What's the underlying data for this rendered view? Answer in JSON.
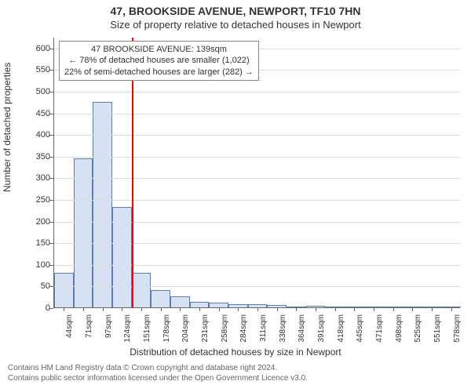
{
  "chart": {
    "type": "histogram",
    "title_line1": "47, BROOKSIDE AVENUE, NEWPORT, TF10 7HN",
    "title_line2": "Size of property relative to detached houses in Newport",
    "ylabel": "Number of detached properties",
    "xlabel": "Distribution of detached houses by size in Newport",
    "title_fontsize": 14,
    "subtitle_fontsize": 13,
    "label_fontsize": 12,
    "tick_fontsize": 11,
    "background_color": "#ffffff",
    "grid_color": "#dcdcdc",
    "axis_color": "#666666",
    "ylim_max": 625,
    "yticks": [
      0,
      50,
      100,
      150,
      200,
      250,
      300,
      350,
      400,
      450,
      500,
      550,
      600
    ],
    "xticks": [
      "44sqm",
      "71sqm",
      "97sqm",
      "124sqm",
      "151sqm",
      "178sqm",
      "204sqm",
      "231sqm",
      "258sqm",
      "284sqm",
      "311sqm",
      "338sqm",
      "364sqm",
      "391sqm",
      "418sqm",
      "445sqm",
      "471sqm",
      "498sqm",
      "525sqm",
      "551sqm",
      "578sqm"
    ],
    "bars": {
      "values": [
        80,
        345,
        475,
        232,
        80,
        40,
        25,
        12,
        10,
        8,
        8,
        5,
        0,
        3,
        0,
        0,
        0,
        0,
        0,
        0,
        0
      ],
      "fill_color": "#d6e2f3",
      "border_color": "#5b7fb3",
      "bar_width_ratio": 1.0
    },
    "marker": {
      "position_sqm": 139,
      "xrange_min_sqm": 44,
      "xtick_step_sqm": 26.7,
      "line_color": "#ff0000",
      "line_width": 2,
      "callout_lines": [
        "47 BROOKSIDE AVENUE: 139sqm",
        "← 78% of detached houses are smaller (1,022)",
        "22% of semi-detached houses are larger (282) →"
      ],
      "callout_border": "#888888",
      "callout_bg": "#ffffff"
    },
    "footer_lines": [
      "Contains HM Land Registry data © Crown copyright and database right 2024.",
      "Contains public sector information licensed under the Open Government Licence v3.0."
    ]
  }
}
